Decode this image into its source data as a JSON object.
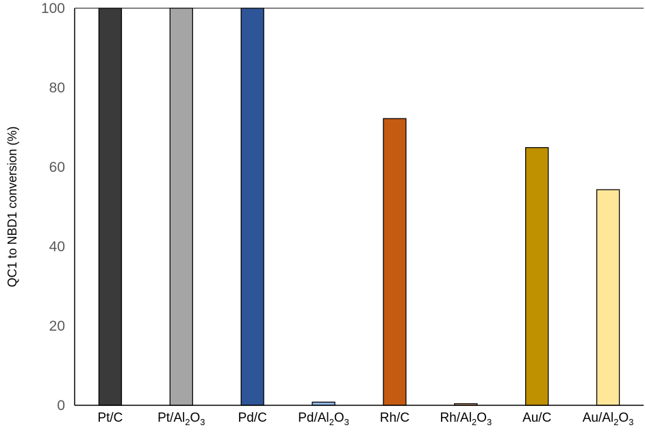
{
  "chart_data": {
    "type": "bar",
    "title": "",
    "xlabel": "",
    "ylabel": "QC1 to NBD1 conversion (%)",
    "ylim": [
      0,
      100
    ],
    "yticks": [
      "0",
      "20",
      "40",
      "60",
      "80",
      "100"
    ],
    "grid": false,
    "legend": "none",
    "categories": [
      {
        "parts": [
          {
            "t": "Pt/C"
          }
        ]
      },
      {
        "parts": [
          {
            "t": "Pt/Al"
          },
          {
            "t": "2",
            "sub": true
          },
          {
            "t": "O"
          },
          {
            "t": "3",
            "sub": true
          }
        ]
      },
      {
        "parts": [
          {
            "t": "Pd/C"
          }
        ]
      },
      {
        "parts": [
          {
            "t": "Pd/Al"
          },
          {
            "t": "2",
            "sub": true
          },
          {
            "t": "O"
          },
          {
            "t": "3",
            "sub": true
          }
        ]
      },
      {
        "parts": [
          {
            "t": "Rh/C"
          }
        ]
      },
      {
        "parts": [
          {
            "t": "Rh/Al"
          },
          {
            "t": "2",
            "sub": true
          },
          {
            "t": "O"
          },
          {
            "t": "3",
            "sub": true
          }
        ]
      },
      {
        "parts": [
          {
            "t": "Au/C"
          }
        ]
      },
      {
        "parts": [
          {
            "t": "Au/Al"
          },
          {
            "t": "2",
            "sub": true
          },
          {
            "t": "O"
          },
          {
            "t": "3",
            "sub": true
          }
        ]
      }
    ],
    "values": [
      100,
      100,
      100,
      0.8,
      72.2,
      0.4,
      64.9,
      54.3
    ],
    "colors": [
      "#3a3a3a",
      "#a5a5a5",
      "#2e5597",
      "#8fb4e3",
      "#c55a11",
      "#f4b183",
      "#bf9000",
      "#ffe699"
    ],
    "bar_edge_color": "#000000",
    "axis_color": "#000000"
  }
}
